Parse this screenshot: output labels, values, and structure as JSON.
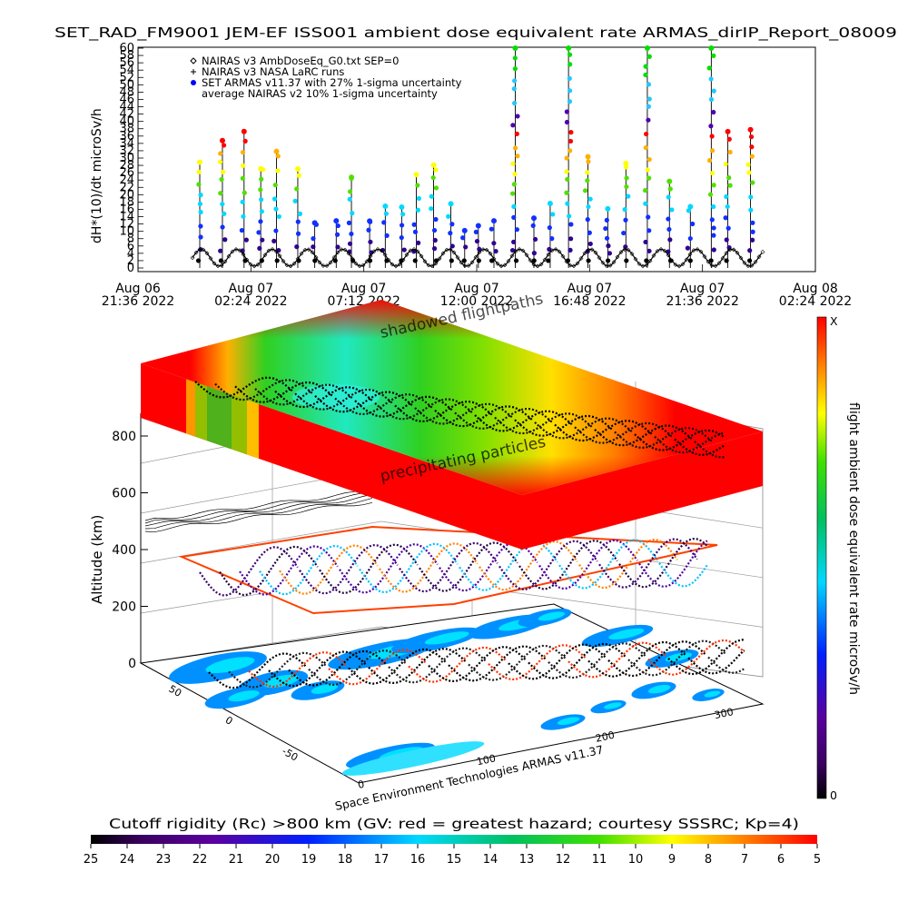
{
  "chart_data": [
    {
      "type": "scatter",
      "title": "SET_RAD_FM9001  JEM-EF ISS001 ambient dose equivalent rate ARMAS_dirIP_Report_08009",
      "ylabel": "dH*(10)/dt microSv/h",
      "ylim": [
        0,
        60
      ],
      "y_ticks": [
        "0",
        "2",
        "4",
        "6",
        "8",
        "10",
        "12",
        "14",
        "16",
        "18",
        "20",
        "22",
        "24",
        "26",
        "28",
        "30",
        "32",
        "34",
        "36",
        "38",
        "40",
        "42",
        "44",
        "46",
        "48",
        "50",
        "52",
        "54",
        "56",
        "58",
        "60"
      ],
      "x_ticks": [
        {
          "line1": "Aug 06",
          "line2": "21:36 2022"
        },
        {
          "line1": "Aug 07",
          "line2": "02:24 2022"
        },
        {
          "line1": "Aug 07",
          "line2": "07:12 2022"
        },
        {
          "line1": "Aug 07",
          "line2": "12:00 2022"
        },
        {
          "line1": "Aug 07",
          "line2": "16:48 2022"
        },
        {
          "line1": "Aug 07",
          "line2": "21:36 2022"
        },
        {
          "line1": "Aug 08",
          "line2": "02:24 2022"
        }
      ],
      "legend_position": "top-left",
      "series": [
        {
          "name": "NAIRAS v3 AmbDoseEq_G0.txt SEP=0",
          "marker": "diamond",
          "color": "#000000",
          "approx_range": [
            0,
            5
          ]
        },
        {
          "name": "NAIRAS v3 NASA LaRC runs",
          "marker": "plus",
          "color": "#000000",
          "approx_range": [
            0,
            2
          ]
        },
        {
          "name": "SET ARMAS v11.37 with 27% 1-sigma uncertainty",
          "marker": "circle",
          "color": "#0000ff",
          "approx_range": [
            0,
            60
          ]
        },
        {
          "name": "average NAIRAS v2 10% 1-sigma uncertainty",
          "marker": "none",
          "color": "#000000"
        }
      ]
    },
    {
      "type": "heatmap",
      "zlabel": "Altitude (km)",
      "z_ticks": [
        "0",
        "200",
        "400",
        "600",
        "800"
      ],
      "zlim": [
        0,
        900
      ],
      "x_ticks": [
        "0",
        "100",
        "200",
        "300"
      ],
      "y_ticks": [
        "-50",
        "0",
        "50"
      ],
      "annotations": [
        "shadowed flightpaths",
        "precipitating particles",
        "Space Environment Technologies ARMAS v11.37"
      ],
      "colorbar_right": {
        "label": "flight ambient dose equivalent rate microSv/h",
        "top": "X",
        "bottom": "0"
      },
      "colorbar_bottom": {
        "label": "Cutoff rigidity (Rc) >800 km (GV: red = greatest hazard; courtesy SSSRC; Kp=4)",
        "ticks": [
          "25",
          "24",
          "23",
          "22",
          "21",
          "20",
          "19",
          "18",
          "17",
          "16",
          "15",
          "14",
          "13",
          "12",
          "11",
          "10",
          "9",
          "8",
          "7",
          "6",
          "5"
        ]
      }
    }
  ]
}
